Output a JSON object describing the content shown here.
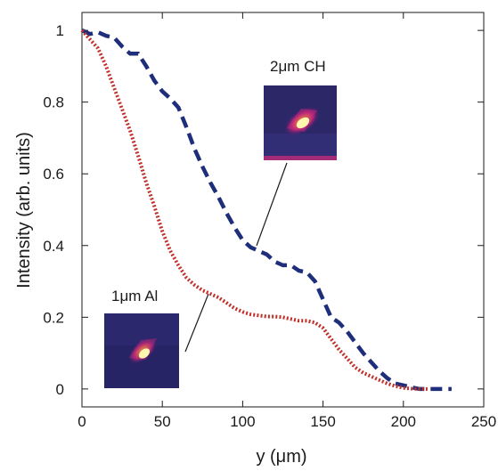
{
  "chart_data": {
    "type": "line",
    "xlabel": "y (μm)",
    "ylabel": "Intensity (arb. units)",
    "xlim": [
      0,
      250
    ],
    "ylim": [
      -0.05,
      1.05
    ],
    "xticks": [
      0,
      50,
      100,
      150,
      200,
      250
    ],
    "yticks": [
      0,
      0.2,
      0.4,
      0.6,
      0.8,
      1
    ],
    "ytick_labels": [
      "0",
      "0.2",
      "0.4",
      "0.6",
      "0.8",
      "1"
    ],
    "grid": false,
    "series": [
      {
        "color": "#1f2e7a",
        "style": "dashed",
        "x": [
          0,
          5,
          10,
          15,
          20,
          25,
          30,
          35,
          40,
          45,
          50,
          55,
          60,
          65,
          70,
          75,
          80,
          85,
          90,
          95,
          100,
          105,
          110,
          115,
          120,
          125,
          130,
          135,
          140,
          145,
          150,
          155,
          160,
          165,
          170,
          175,
          180,
          185,
          190,
          195,
          200,
          205,
          210,
          215,
          220,
          225,
          230
        ],
        "y": [
          1.0,
          0.99,
          0.995,
          0.985,
          0.98,
          0.955,
          0.935,
          0.935,
          0.9,
          0.86,
          0.83,
          0.81,
          0.785,
          0.73,
          0.67,
          0.62,
          0.575,
          0.535,
          0.49,
          0.45,
          0.415,
          0.395,
          0.385,
          0.375,
          0.355,
          0.345,
          0.345,
          0.33,
          0.325,
          0.3,
          0.25,
          0.2,
          0.185,
          0.16,
          0.13,
          0.1,
          0.075,
          0.05,
          0.03,
          0.015,
          0.01,
          0.005,
          0.0,
          0.0,
          0.0,
          0.0,
          0.0
        ]
      },
      {
        "color": "#c0302a",
        "style": "dotted",
        "x": [
          0,
          5,
          10,
          15,
          20,
          25,
          30,
          35,
          40,
          45,
          50,
          55,
          60,
          65,
          70,
          75,
          80,
          85,
          90,
          95,
          100,
          105,
          110,
          115,
          120,
          125,
          130,
          135,
          140,
          145,
          150,
          155,
          160,
          165,
          170,
          175,
          180,
          185,
          190,
          195,
          200,
          205,
          210,
          215
        ],
        "y": [
          1.0,
          0.975,
          0.95,
          0.9,
          0.84,
          0.78,
          0.72,
          0.65,
          0.575,
          0.51,
          0.44,
          0.385,
          0.345,
          0.31,
          0.29,
          0.275,
          0.265,
          0.255,
          0.24,
          0.225,
          0.215,
          0.208,
          0.205,
          0.202,
          0.202,
          0.2,
          0.195,
          0.19,
          0.19,
          0.185,
          0.17,
          0.14,
          0.11,
          0.085,
          0.06,
          0.045,
          0.035,
          0.025,
          0.015,
          0.008,
          0.003,
          0.001,
          0.0,
          0.0
        ]
      }
    ],
    "annotations": [
      {
        "text": "2μm CH",
        "series": 0
      },
      {
        "text": "1μm Al",
        "series": 1
      }
    ]
  }
}
